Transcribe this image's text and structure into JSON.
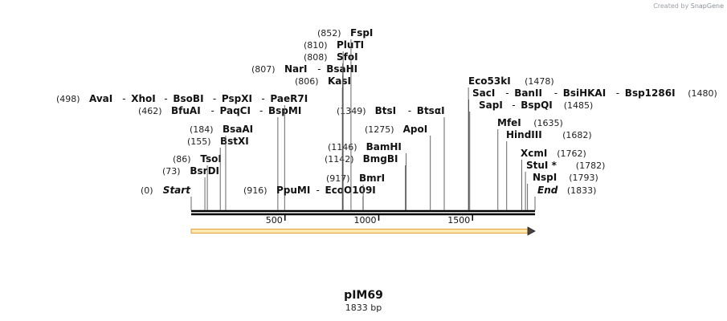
{
  "header": {
    "credit_prefix": "Created by",
    "credit_brand": "SnapGene"
  },
  "plasmid": {
    "name": "pIM69",
    "length_label": "1833 bp",
    "length_bp": 1833
  },
  "colors": {
    "backbone": "#000000",
    "feature_fill": "#fbe7b2",
    "feature_stroke": "#e9a23b",
    "site_line": "#555555"
  },
  "axis": {
    "ticks": [
      {
        "pos": 500,
        "label": "500"
      },
      {
        "pos": 1000,
        "label": "1000"
      },
      {
        "pos": 1500,
        "label": "1500"
      }
    ]
  },
  "feature": {
    "name": "orf-arrow",
    "start": 1,
    "end": 1833,
    "direction": "forward"
  },
  "sites": [
    {
      "pos": 0,
      "pos_label": "(0)",
      "enzymes": [
        "Start"
      ],
      "italic": true
    },
    {
      "pos": 73,
      "pos_label": "(73)",
      "enzymes": [
        "BsrDI"
      ]
    },
    {
      "pos": 86,
      "pos_label": "(86)",
      "enzymes": [
        "TsoI"
      ]
    },
    {
      "pos": 155,
      "pos_label": "(155)",
      "enzymes": [
        "BstXI"
      ]
    },
    {
      "pos": 184,
      "pos_label": "(184)",
      "enzymes": [
        "BsaAI"
      ]
    },
    {
      "pos": 462,
      "pos_label": "(462)",
      "enzymes": [
        "BfuAI",
        "PaqCI",
        "BspMI"
      ]
    },
    {
      "pos": 498,
      "pos_label": "(498)",
      "enzymes": [
        "AvaI",
        "XhoI",
        "BsoBI",
        "PspXI",
        "PaeR7I"
      ]
    },
    {
      "pos": 916,
      "pos_label": "(916)",
      "enzymes": [
        "PpuMI",
        "EcoO109I"
      ]
    },
    {
      "pos": 917,
      "pos_label": "(917)",
      "enzymes": [
        "BmrI"
      ]
    },
    {
      "pos": 1142,
      "pos_label": "(1142)",
      "enzymes": [
        "BmgBI"
      ]
    },
    {
      "pos": 1146,
      "pos_label": "(1146)",
      "enzymes": [
        "BamHI"
      ]
    },
    {
      "pos": 1275,
      "pos_label": "(1275)",
      "enzymes": [
        "ApoI"
      ]
    },
    {
      "pos": 1349,
      "pos_label": "(1349)",
      "enzymes": [
        "BtsI",
        "BtsαI"
      ]
    },
    {
      "pos": 806,
      "pos_label": "(806)",
      "enzymes": [
        "KasI"
      ]
    },
    {
      "pos": 807,
      "pos_label": "(807)",
      "enzymes": [
        "NarI",
        "BsaHI"
      ]
    },
    {
      "pos": 808,
      "pos_label": "(808)",
      "enzymes": [
        "SfoI"
      ]
    },
    {
      "pos": 810,
      "pos_label": "(810)",
      "enzymes": [
        "PluTI"
      ]
    },
    {
      "pos": 852,
      "pos_label": "(852)",
      "enzymes": [
        "FspI"
      ]
    },
    {
      "pos": 1478,
      "pos_label": "(1478)",
      "enzymes": [
        "Eco53kI"
      ]
    },
    {
      "pos": 1480,
      "pos_label": "(1480)",
      "enzymes": [
        "SacI",
        "BanII",
        "BsiHKAI",
        "Bsp1286I"
      ]
    },
    {
      "pos": 1485,
      "pos_label": "(1485)",
      "enzymes": [
        "SapI",
        "BspQI"
      ]
    },
    {
      "pos": 1635,
      "pos_label": "(1635)",
      "enzymes": [
        "MfeI"
      ]
    },
    {
      "pos": 1682,
      "pos_label": "(1682)",
      "enzymes": [
        "HindIII"
      ]
    },
    {
      "pos": 1762,
      "pos_label": "(1762)",
      "enzymes": [
        "XcmI"
      ]
    },
    {
      "pos": 1782,
      "pos_label": "(1782)",
      "enzymes": [
        "StuI *"
      ]
    },
    {
      "pos": 1793,
      "pos_label": "(1793)",
      "enzymes": [
        "NspI"
      ]
    },
    {
      "pos": 1833,
      "pos_label": "(1833)",
      "enzymes": [
        "End"
      ],
      "italic": true
    }
  ]
}
